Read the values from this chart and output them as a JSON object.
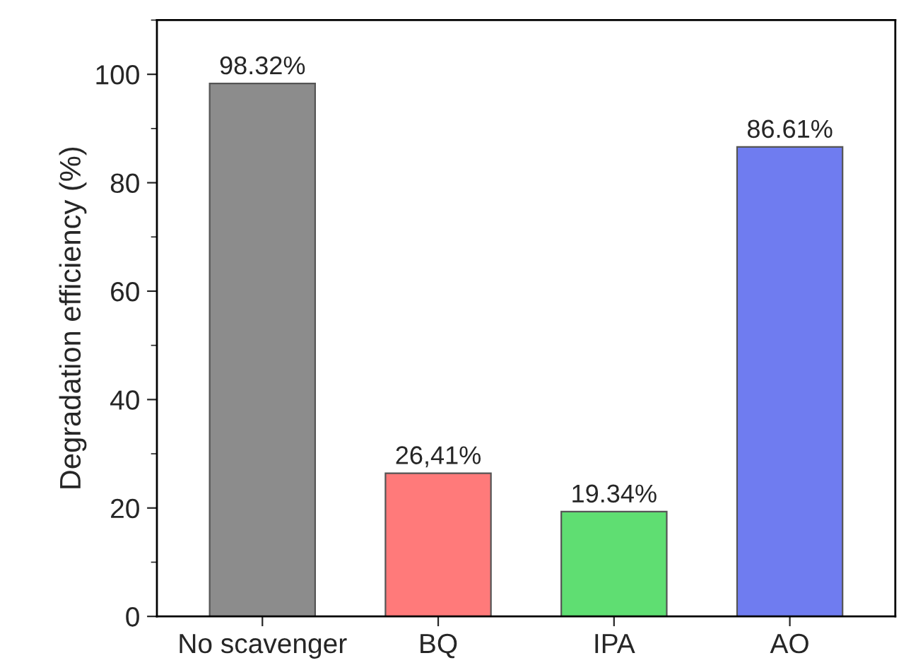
{
  "chart_data": {
    "type": "bar",
    "ylabel": "Degradation efficiency (%)",
    "categories": [
      "No scavenger",
      "BQ",
      "IPA",
      "AO"
    ],
    "values": [
      98.32,
      26.41,
      19.34,
      86.61
    ],
    "value_labels": [
      "98.32%",
      "26,41%",
      "19.34%",
      "86.61%"
    ],
    "colors": [
      "#8c8c8c",
      "#ff7a7a",
      "#5fde72",
      "#6f7cf0"
    ],
    "ylim": [
      0,
      110
    ],
    "yticks": [
      0,
      20,
      40,
      60,
      80,
      100
    ],
    "grid": false,
    "legend": false
  }
}
